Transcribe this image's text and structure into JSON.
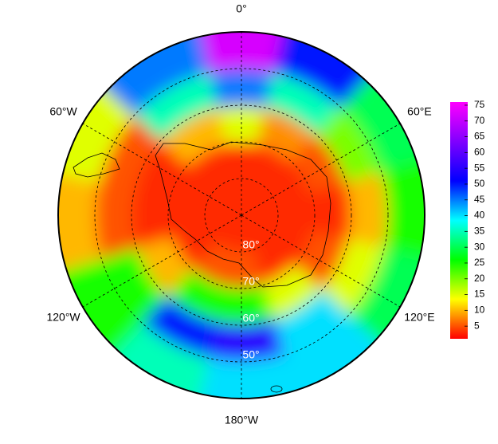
{
  "chart_data": {
    "type": "polar-map",
    "latlim": [
      -90,
      -40
    ],
    "lat_ticks": [
      {
        "value": -80,
        "label": "80°"
      },
      {
        "value": -70,
        "label": "70°"
      },
      {
        "value": -60,
        "label": "60°"
      },
      {
        "value": -50,
        "label": "50°"
      }
    ],
    "lon_ticks": [
      {
        "value": 0,
        "label": "0°"
      },
      {
        "value": 60,
        "label": "60°E"
      },
      {
        "value": 120,
        "label": "120°E"
      },
      {
        "value": 180,
        "label": "180°W"
      },
      {
        "value": -120,
        "label": "120°W"
      },
      {
        "value": -60,
        "label": "60°W"
      }
    ],
    "field": {
      "lats": [
        -85,
        -75,
        -65,
        -55,
        -45
      ],
      "lons": [
        0,
        30,
        60,
        90,
        120,
        150,
        180,
        210,
        240,
        270,
        300,
        330
      ],
      "values": [
        [
          3,
          3,
          15,
          45,
          72
        ],
        [
          3,
          3,
          8,
          35,
          50
        ],
        [
          3,
          3,
          5,
          20,
          30
        ],
        [
          3,
          3,
          3,
          10,
          25
        ],
        [
          3,
          3,
          5,
          15,
          30
        ],
        [
          3,
          3,
          15,
          40,
          40
        ],
        [
          3,
          5,
          25,
          55,
          40
        ],
        [
          3,
          5,
          25,
          50,
          35
        ],
        [
          3,
          3,
          10,
          25,
          25
        ],
        [
          3,
          3,
          3,
          5,
          10
        ],
        [
          3,
          3,
          3,
          5,
          15
        ],
        [
          3,
          3,
          10,
          35,
          45
        ]
      ]
    },
    "colorbar": {
      "lim": [
        1,
        76
      ],
      "ticks": [
        5,
        10,
        15,
        20,
        25,
        30,
        35,
        40,
        45,
        50,
        55,
        60,
        65,
        70,
        75
      ],
      "colormap": [
        "#ff0000",
        "#ffff00",
        "#00ff00",
        "#00ffff",
        "#0000ff",
        "#8000ff",
        "#ff00ff"
      ]
    }
  }
}
